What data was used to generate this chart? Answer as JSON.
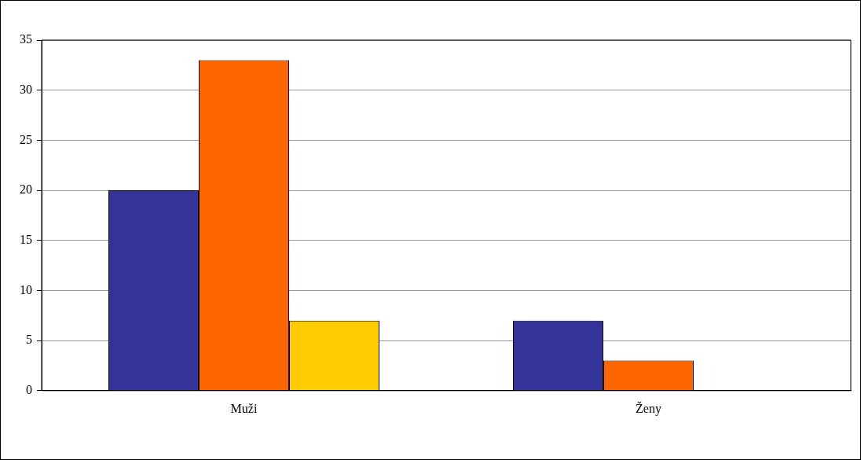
{
  "chart_data": {
    "type": "bar",
    "categories": [
      "Muži",
      "Ženy"
    ],
    "series": [
      {
        "color": "#333399",
        "values": [
          20,
          7
        ]
      },
      {
        "color": "#ff6600",
        "values": [
          33,
          3
        ]
      },
      {
        "color": "#ffcc00",
        "values": [
          7,
          null
        ]
      }
    ],
    "ylim": [
      0,
      35
    ],
    "yticks": [
      0,
      5,
      10,
      15,
      20,
      25,
      30,
      35
    ],
    "grid": "y"
  }
}
